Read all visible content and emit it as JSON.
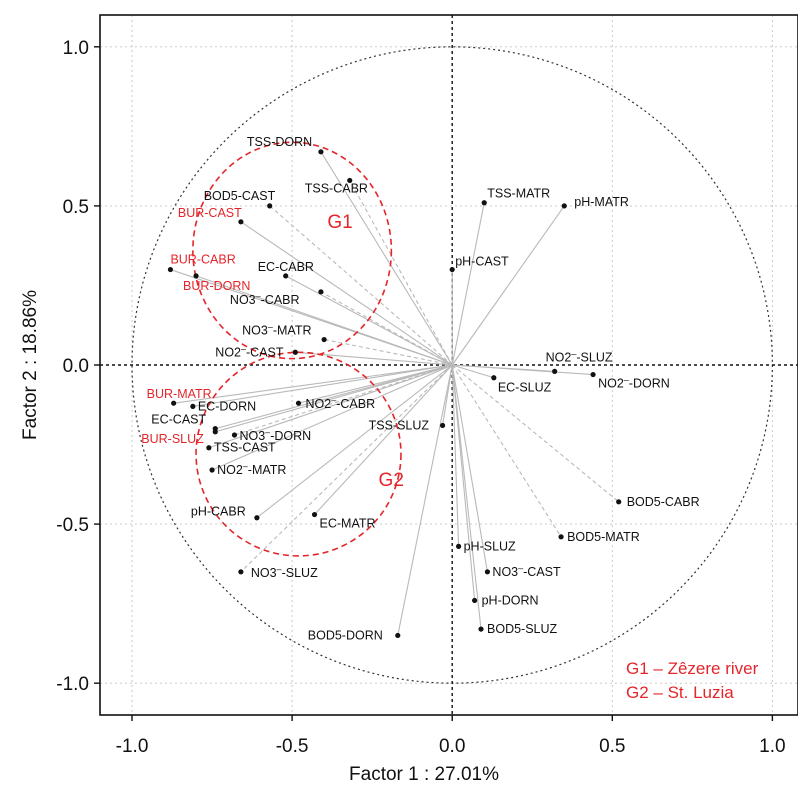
{
  "chart_data": {
    "type": "scatter",
    "title": "",
    "xlabel": "Factor 1 : 27.01%",
    "ylabel": "Factor 2 : 18.86%",
    "xlim": [
      -1.1,
      1.08
    ],
    "ylim": [
      -1.1,
      1.1
    ],
    "xticks": [
      -1.0,
      -0.5,
      0.0,
      0.5,
      1.0
    ],
    "xtick_labels": [
      "-1.0",
      "-0.5",
      "0.0",
      "0.5",
      "1.0"
    ],
    "yticks": [
      -1.0,
      -0.5,
      0.0,
      0.5,
      1.0
    ],
    "ytick_labels": [
      "-1.0",
      "-0.5",
      "0.0",
      "0.5",
      "1.0"
    ],
    "grid": true,
    "unit_circle": true,
    "highlight_color": "#e4262b",
    "groups": [
      {
        "label": "G1",
        "center": [
          -0.5,
          0.36
        ],
        "rx": 0.31,
        "ry": 0.34,
        "label_at": [
          -0.39,
          0.43
        ]
      },
      {
        "label": "G2",
        "center": [
          -0.48,
          -0.28
        ],
        "rx": 0.32,
        "ry": 0.32,
        "label_at": [
          -0.23,
          -0.38
        ]
      }
    ],
    "legend": [
      "G1 – Zêzere river",
      "G2 – St. Luzia"
    ],
    "points": [
      {
        "label": "TSS-DORN",
        "x": -0.41,
        "y": 0.67,
        "color": "black",
        "line": "solid"
      },
      {
        "label": "TSS-CABR",
        "x": -0.32,
        "y": 0.58,
        "color": "black",
        "line": "dashed"
      },
      {
        "label": "BOD5-CAST",
        "x": -0.57,
        "y": 0.5,
        "color": "black",
        "line": "dashed"
      },
      {
        "label": "BUR-CAST",
        "x": -0.66,
        "y": 0.45,
        "color": "red",
        "line": "solid"
      },
      {
        "label": "BUR-CABR",
        "x": -0.88,
        "y": 0.3,
        "color": "red",
        "line": "solid"
      },
      {
        "label": "BUR-DORN",
        "x": -0.8,
        "y": 0.28,
        "color": "red",
        "line": "solid"
      },
      {
        "label": "EC-CABR",
        "x": -0.52,
        "y": 0.28,
        "color": "black",
        "line": "solid"
      },
      {
        "label": "NO3–-CABR",
        "x": -0.41,
        "y": 0.23,
        "color": "black",
        "line": "dashed"
      },
      {
        "label": "NO3–-MATR",
        "x": -0.4,
        "y": 0.08,
        "color": "black",
        "line": "dashed"
      },
      {
        "label": "NO2–-CAST",
        "x": -0.49,
        "y": 0.04,
        "color": "black",
        "line": "solid"
      },
      {
        "label": "TSS-MATR",
        "x": 0.1,
        "y": 0.51,
        "color": "black",
        "line": "solid"
      },
      {
        "label": "pH-MATR",
        "x": 0.35,
        "y": 0.5,
        "color": "black",
        "line": "solid"
      },
      {
        "label": "pH-CAST",
        "x": 0.0,
        "y": 0.3,
        "color": "black",
        "line": "solid"
      },
      {
        "label": "NO2–-SLUZ",
        "x": 0.32,
        "y": -0.02,
        "color": "black",
        "line": "solid"
      },
      {
        "label": "NO2–-DORN",
        "x": 0.44,
        "y": -0.03,
        "color": "black",
        "line": "solid"
      },
      {
        "label": "EC-SLUZ",
        "x": 0.13,
        "y": -0.04,
        "color": "black",
        "line": "solid"
      },
      {
        "label": "BUR-MATR",
        "x": -0.87,
        "y": -0.12,
        "color": "red",
        "line": "solid"
      },
      {
        "label": "EC-DORN",
        "x": -0.81,
        "y": -0.13,
        "color": "black",
        "line": "solid"
      },
      {
        "label": "NO2–-CABR",
        "x": -0.48,
        "y": -0.12,
        "color": "black",
        "line": "solid"
      },
      {
        "label": "EC-CAST",
        "x": -0.74,
        "y": -0.2,
        "color": "black",
        "line": "solid"
      },
      {
        "label": "BUR-SLUZ",
        "x": -0.74,
        "y": -0.21,
        "color": "red",
        "line": "solid"
      },
      {
        "label": "NO3–-DORN",
        "x": -0.68,
        "y": -0.22,
        "color": "black",
        "line": "dashed"
      },
      {
        "label": "TSS-SLUZ",
        "x": -0.03,
        "y": -0.19,
        "color": "black",
        "line": "solid"
      },
      {
        "label": "TSS-CAST",
        "x": -0.76,
        "y": -0.26,
        "color": "black",
        "line": "solid"
      },
      {
        "label": "NO2–-MATR",
        "x": -0.75,
        "y": -0.33,
        "color": "black",
        "line": "solid"
      },
      {
        "label": "pH-CABR",
        "x": -0.61,
        "y": -0.48,
        "color": "black",
        "line": "solid"
      },
      {
        "label": "EC-MATR",
        "x": -0.43,
        "y": -0.47,
        "color": "black",
        "line": "solid"
      },
      {
        "label": "NO3–-SLUZ",
        "x": -0.66,
        "y": -0.65,
        "color": "black",
        "line": "dashed"
      },
      {
        "label": "BOD5-DORN",
        "x": -0.17,
        "y": -0.85,
        "color": "black",
        "line": "solid"
      },
      {
        "label": "BOD5-CABR",
        "x": 0.52,
        "y": -0.43,
        "color": "black",
        "line": "dashed"
      },
      {
        "label": "BOD5-MATR",
        "x": 0.34,
        "y": -0.54,
        "color": "black",
        "line": "dashed"
      },
      {
        "label": "pH-SLUZ",
        "x": 0.02,
        "y": -0.57,
        "color": "black",
        "line": "solid"
      },
      {
        "label": "NO3–-CAST",
        "x": 0.11,
        "y": -0.65,
        "color": "black",
        "line": "solid"
      },
      {
        "label": "pH-DORN",
        "x": 0.07,
        "y": -0.74,
        "color": "black",
        "line": "solid"
      },
      {
        "label": "BOD5-SLUZ",
        "x": 0.09,
        "y": -0.83,
        "color": "black",
        "line": "solid"
      }
    ]
  }
}
